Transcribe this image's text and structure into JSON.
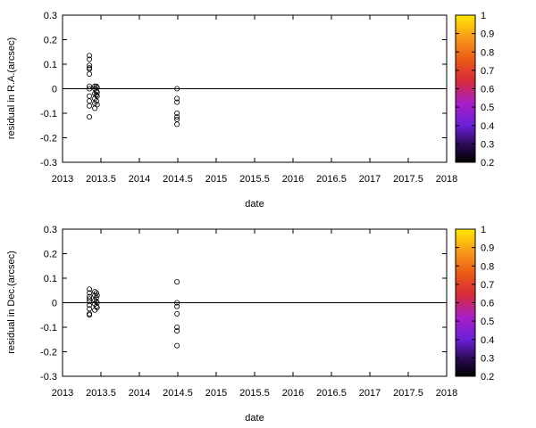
{
  "chart_data": [
    {
      "type": "scatter",
      "xlabel": "date",
      "ylabel": "residual in R.A.(arcsec)",
      "xlim": [
        2013,
        2018
      ],
      "ylim": [
        -0.3,
        0.3
      ],
      "x_ticks": [
        "2013",
        "2013.5",
        "2014",
        "2014.5",
        "2015",
        "2015.5",
        "2016",
        "2016.5",
        "2017",
        "2017.5",
        "2018"
      ],
      "y_ticks": [
        "0.3",
        "0.2",
        "0.1",
        "0",
        "-0.1",
        "-0.2",
        "-0.3"
      ],
      "y_tick_values": [
        0.3,
        0.2,
        0.1,
        0,
        -0.1,
        -0.2,
        -0.3
      ],
      "zero_line": 0,
      "colorbar": {
        "ticks": [
          "1",
          "0.9",
          "0.8",
          "0.7",
          "0.6",
          "0.5",
          "0.4",
          "0.3",
          "0.2"
        ],
        "range": [
          0.2,
          1
        ]
      },
      "points": [
        {
          "x": 2013.35,
          "y": 0.135
        },
        {
          "x": 2013.35,
          "y": 0.12
        },
        {
          "x": 2013.35,
          "y": 0.095
        },
        {
          "x": 2013.35,
          "y": 0.085
        },
        {
          "x": 2013.35,
          "y": 0.08
        },
        {
          "x": 2013.35,
          "y": 0.06
        },
        {
          "x": 2013.35,
          "y": 0.01
        },
        {
          "x": 2013.35,
          "y": 0.0
        },
        {
          "x": 2013.35,
          "y": -0.03
        },
        {
          "x": 2013.35,
          "y": -0.05
        },
        {
          "x": 2013.35,
          "y": -0.07
        },
        {
          "x": 2013.35,
          "y": -0.115
        },
        {
          "x": 2013.42,
          "y": 0.01
        },
        {
          "x": 2013.42,
          "y": 0.0
        },
        {
          "x": 2013.42,
          "y": -0.02
        },
        {
          "x": 2013.42,
          "y": -0.04
        },
        {
          "x": 2013.42,
          "y": -0.06
        },
        {
          "x": 2013.42,
          "y": -0.08
        },
        {
          "x": 2013.44,
          "y": 0.01
        },
        {
          "x": 2013.44,
          "y": -0.01
        },
        {
          "x": 2013.44,
          "y": -0.025
        },
        {
          "x": 2013.44,
          "y": -0.05
        },
        {
          "x": 2013.45,
          "y": 0.005
        },
        {
          "x": 2013.45,
          "y": -0.015
        },
        {
          "x": 2013.45,
          "y": -0.03
        },
        {
          "x": 2013.45,
          "y": -0.065
        },
        {
          "x": 2014.49,
          "y": 0.0
        },
        {
          "x": 2014.49,
          "y": -0.04
        },
        {
          "x": 2014.49,
          "y": -0.055
        },
        {
          "x": 2014.49,
          "y": -0.1
        },
        {
          "x": 2014.49,
          "y": -0.115
        },
        {
          "x": 2014.49,
          "y": -0.125
        },
        {
          "x": 2014.49,
          "y": -0.145
        }
      ]
    },
    {
      "type": "scatter",
      "xlabel": "date",
      "ylabel": "residual in Dec.(arcsec)",
      "xlim": [
        2013,
        2018
      ],
      "ylim": [
        -0.3,
        0.3
      ],
      "x_ticks": [
        "2013",
        "2013.5",
        "2014",
        "2014.5",
        "2015",
        "2015.5",
        "2016",
        "2016.5",
        "2017",
        "2017.5",
        "2018"
      ],
      "y_ticks": [
        "0.3",
        "0.2",
        "0.1",
        "0",
        "-0.1",
        "-0.2",
        "-0.3"
      ],
      "y_tick_values": [
        0.3,
        0.2,
        0.1,
        0,
        -0.1,
        -0.2,
        -0.3
      ],
      "zero_line": 0,
      "colorbar": {
        "ticks": [
          "1",
          "0.9",
          "0.8",
          "0.7",
          "0.6",
          "0.5",
          "0.4",
          "0.3",
          "0.2"
        ],
        "range": [
          0.2,
          1
        ]
      },
      "points": [
        {
          "x": 2013.35,
          "y": 0.055
        },
        {
          "x": 2013.35,
          "y": 0.04
        },
        {
          "x": 2013.35,
          "y": 0.025
        },
        {
          "x": 2013.35,
          "y": 0.015
        },
        {
          "x": 2013.35,
          "y": 0.005
        },
        {
          "x": 2013.35,
          "y": -0.01
        },
        {
          "x": 2013.35,
          "y": -0.025
        },
        {
          "x": 2013.35,
          "y": -0.045
        },
        {
          "x": 2013.35,
          "y": -0.05
        },
        {
          "x": 2013.42,
          "y": 0.045
        },
        {
          "x": 2013.42,
          "y": 0.03
        },
        {
          "x": 2013.42,
          "y": 0.01
        },
        {
          "x": 2013.42,
          "y": -0.005
        },
        {
          "x": 2013.42,
          "y": -0.03
        },
        {
          "x": 2013.44,
          "y": 0.04
        },
        {
          "x": 2013.44,
          "y": 0.02
        },
        {
          "x": 2013.44,
          "y": 0.005
        },
        {
          "x": 2013.44,
          "y": -0.015
        },
        {
          "x": 2013.45,
          "y": 0.03
        },
        {
          "x": 2013.45,
          "y": 0.0
        },
        {
          "x": 2013.45,
          "y": -0.02
        },
        {
          "x": 2014.49,
          "y": 0.085
        },
        {
          "x": 2014.49,
          "y": 0.0
        },
        {
          "x": 2014.49,
          "y": -0.015
        },
        {
          "x": 2014.49,
          "y": -0.045
        },
        {
          "x": 2014.49,
          "y": -0.1
        },
        {
          "x": 2014.49,
          "y": -0.115
        },
        {
          "x": 2014.49,
          "y": -0.175
        }
      ]
    }
  ]
}
